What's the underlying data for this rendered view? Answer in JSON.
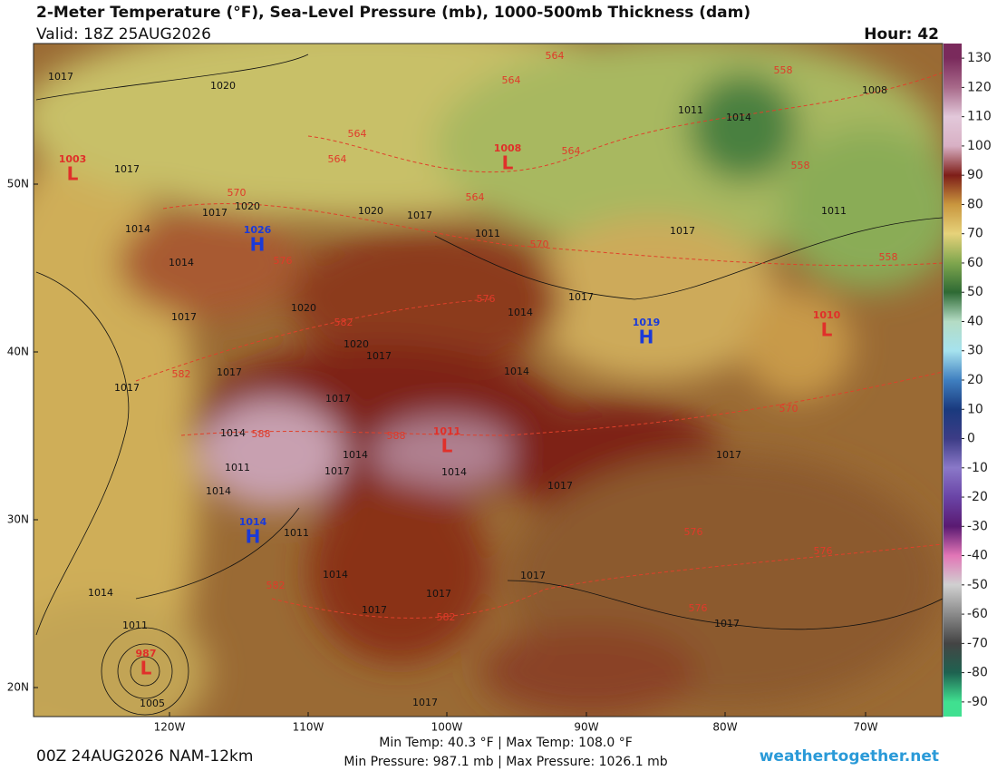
{
  "header": {
    "title": "2-Meter Temperature (°F), Sea-Level Pressure (mb), 1000-500mb Thickness (dam)",
    "valid": "Valid: 18Z 25AUG2026",
    "hour": "Hour: 42"
  },
  "colorbar": {
    "ticks": [
      130,
      120,
      110,
      100,
      90,
      80,
      70,
      60,
      50,
      40,
      30,
      20,
      10,
      0,
      -10,
      -20,
      -30,
      -40,
      -50,
      -60,
      -70,
      -80,
      -90
    ],
    "colors": [
      "#7a2a5c",
      "#a86a8a",
      "#e2c8da",
      "#d8b0c4",
      "#7e1e18",
      "#c9963e",
      "#e6d27a",
      "#7fa64e",
      "#2e6a34",
      "#b4dcc4",
      "#a6e2ee",
      "#3f7fc0",
      "#1a3a7e",
      "#3c3c86",
      "#8a78c8",
      "#6a44a6",
      "#5a1a72",
      "#e276b6",
      "#d0d0d0",
      "#8a8a8a",
      "#444444",
      "#1e6250",
      "#40e090"
    ]
  },
  "map": {
    "latitudes": [
      "50N",
      "40N",
      "30N",
      "20N"
    ],
    "longitudes": [
      "120W",
      "110W",
      "100W",
      "90W",
      "80W",
      "70W"
    ],
    "isobar_labels": [
      "1017",
      "1020",
      "1017",
      "1017",
      "1020",
      "1014",
      "1020",
      "1017",
      "1011",
      "1014",
      "1017",
      "1020",
      "1020",
      "1017",
      "1017",
      "1017",
      "1017",
      "1014",
      "1014",
      "1017",
      "1017",
      "1011",
      "1014",
      "1008",
      "1011",
      "1014",
      "1011",
      "1014",
      "1014",
      "1017",
      "1014",
      "1017",
      "1011",
      "1014",
      "1017",
      "1017",
      "1017",
      "1017",
      "1017",
      "1014",
      "1011",
      "1005",
      "1017"
    ],
    "thickness_labels": [
      "564",
      "564",
      "558",
      "564",
      "564",
      "570",
      "564",
      "564",
      "558",
      "570",
      "558",
      "576",
      "576",
      "582",
      "582",
      "588",
      "588",
      "570",
      "576",
      "582",
      "582",
      "576",
      "576"
    ],
    "centers": [
      {
        "letter": "L",
        "pressure": "1003"
      },
      {
        "letter": "L",
        "pressure": "1008"
      },
      {
        "letter": "H",
        "pressure": "1026"
      },
      {
        "letter": "H",
        "pressure": "1019"
      },
      {
        "letter": "L",
        "pressure": "1010"
      },
      {
        "letter": "L",
        "pressure": "1011"
      },
      {
        "letter": "H",
        "pressure": "1014"
      },
      {
        "letter": "L",
        "pressure": "987"
      }
    ]
  },
  "footer": {
    "temps": "Min Temp:  40.3 °F | Max Temp: 108.0 °F",
    "pressures": "Min Pressure: 987.1 mb | Max Pressure: 1026.1 mb",
    "run": "00Z 24AUG2026 NAM-12km",
    "site": "weathertogether.net"
  }
}
